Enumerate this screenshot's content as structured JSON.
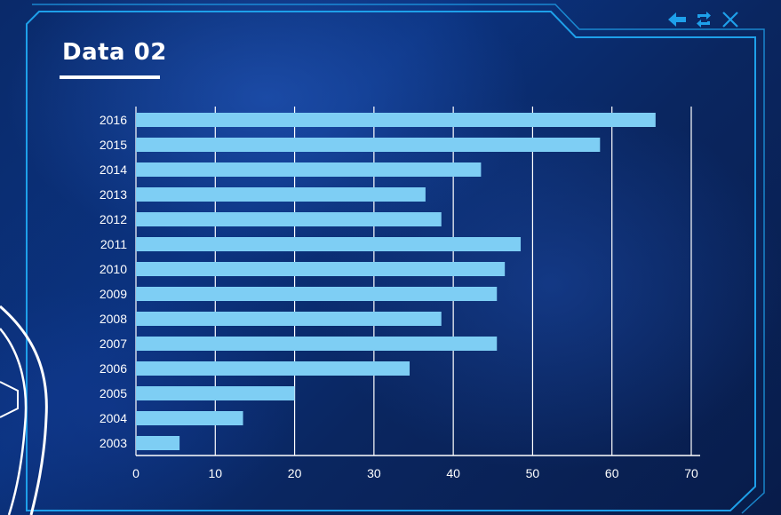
{
  "panel": {
    "title": "Data 02"
  },
  "toolbar": {
    "icons": [
      "back-arrow-icon",
      "refresh-icon",
      "close-icon"
    ]
  },
  "colors": {
    "bar": "#7ecef4",
    "frame": "#1ea0ea",
    "grid": "#ffffff"
  },
  "chart_data": {
    "type": "bar",
    "orientation": "horizontal",
    "categories": [
      "2016",
      "2015",
      "2014",
      "2013",
      "2012",
      "2011",
      "2010",
      "2009",
      "2008",
      "2007",
      "2006",
      "2005",
      "2004",
      "2003"
    ],
    "values": [
      65.5,
      58.5,
      43.5,
      36.5,
      38.5,
      48.5,
      46.5,
      45.5,
      38.5,
      45.5,
      34.5,
      20,
      13.5,
      5.5
    ],
    "xticks": [
      "0",
      "10",
      "20",
      "30",
      "40",
      "50",
      "60",
      "70"
    ],
    "xlim": [
      0,
      70
    ],
    "grid": true
  }
}
